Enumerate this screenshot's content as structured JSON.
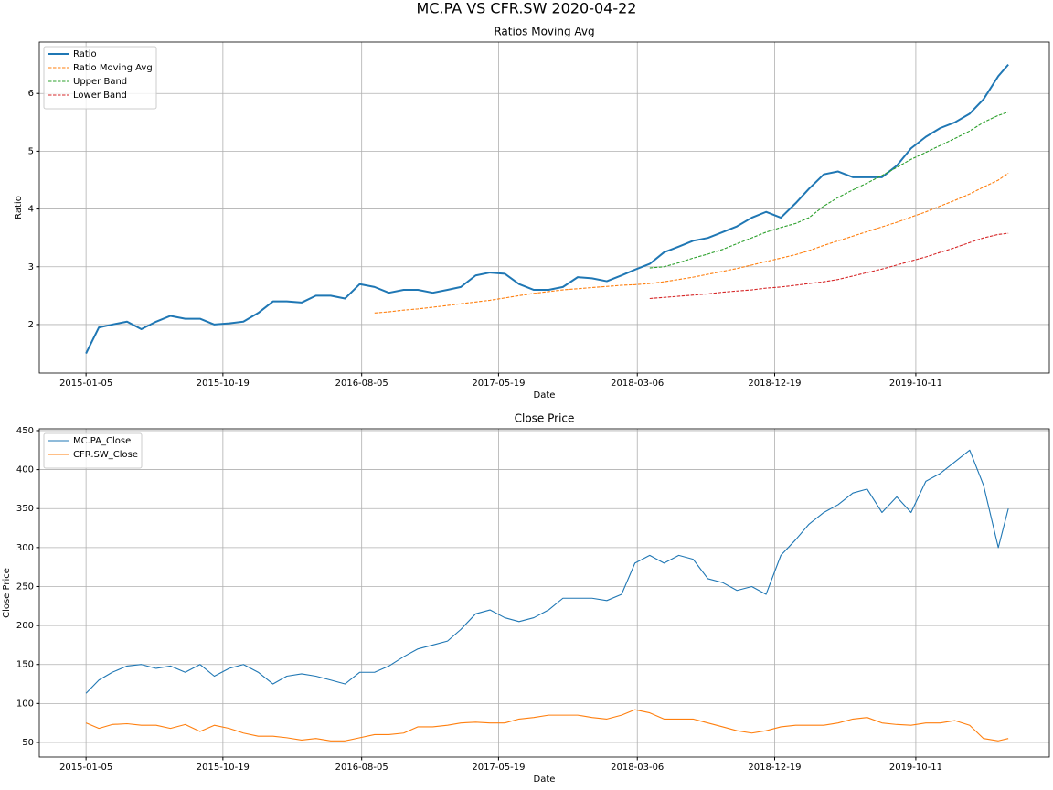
{
  "chart_data": [
    {
      "type": "line",
      "suptitle": "MC.PA VS CFR.SW 2020-04-22",
      "title": "Ratios Moving Avg",
      "xlabel": "Date",
      "ylabel": "Ratio",
      "x": [
        "2015-01-05",
        "2015-02-01",
        "2015-03-01",
        "2015-04-01",
        "2015-05-01",
        "2015-06-01",
        "2015-07-01",
        "2015-08-01",
        "2015-09-01",
        "2015-10-01",
        "2015-11-01",
        "2015-12-01",
        "2016-01-01",
        "2016-02-01",
        "2016-03-01",
        "2016-04-01",
        "2016-05-01",
        "2016-06-01",
        "2016-07-01",
        "2016-08-01",
        "2016-09-01",
        "2016-10-01",
        "2016-11-01",
        "2016-12-01",
        "2017-01-01",
        "2017-02-01",
        "2017-03-01",
        "2017-04-01",
        "2017-05-01",
        "2017-06-01",
        "2017-07-01",
        "2017-08-01",
        "2017-09-01",
        "2017-10-01",
        "2017-11-01",
        "2017-12-01",
        "2018-01-01",
        "2018-02-01",
        "2018-03-01",
        "2018-04-01",
        "2018-05-01",
        "2018-06-01",
        "2018-07-01",
        "2018-08-01",
        "2018-09-01",
        "2018-10-01",
        "2018-11-01",
        "2018-12-01",
        "2019-01-01",
        "2019-02-01",
        "2019-03-01",
        "2019-04-01",
        "2019-05-01",
        "2019-06-01",
        "2019-07-01",
        "2019-08-01",
        "2019-09-01",
        "2019-10-01",
        "2019-11-01",
        "2019-12-01",
        "2020-01-01",
        "2020-02-01",
        "2020-03-01",
        "2020-04-01",
        "2020-04-22"
      ],
      "series": [
        {
          "name": "Ratio",
          "color": "#1f77b4",
          "linestyle": "solid",
          "linewidth": 2,
          "values": [
            1.5,
            1.95,
            2.0,
            2.05,
            1.92,
            2.05,
            2.15,
            2.1,
            2.1,
            2.0,
            2.02,
            2.05,
            2.2,
            2.4,
            2.4,
            2.38,
            2.5,
            2.5,
            2.45,
            2.7,
            2.65,
            2.55,
            2.6,
            2.6,
            2.55,
            2.6,
            2.65,
            2.85,
            2.9,
            2.88,
            2.7,
            2.6,
            2.6,
            2.65,
            2.82,
            2.8,
            2.75,
            2.85,
            2.95,
            3.05,
            3.25,
            3.35,
            3.45,
            3.5,
            3.6,
            3.7,
            3.85,
            3.95,
            3.85,
            4.1,
            4.35,
            4.6,
            4.65,
            4.55,
            4.55,
            4.55,
            4.75,
            5.05,
            5.25,
            5.4,
            5.5,
            5.65,
            5.9,
            6.3,
            6.5
          ]
        },
        {
          "name": "Ratio Moving Avg",
          "color": "#ff7f0e",
          "linestyle": "dashed",
          "linewidth": 1,
          "values": [
            null,
            null,
            null,
            null,
            null,
            null,
            null,
            null,
            null,
            null,
            null,
            null,
            null,
            null,
            null,
            null,
            null,
            null,
            null,
            null,
            2.2,
            2.22,
            2.25,
            2.27,
            2.3,
            2.33,
            2.36,
            2.39,
            2.42,
            2.46,
            2.5,
            2.54,
            2.57,
            2.6,
            2.62,
            2.64,
            2.66,
            2.68,
            2.69,
            2.71,
            2.74,
            2.78,
            2.82,
            2.87,
            2.92,
            2.97,
            3.03,
            3.09,
            3.15,
            3.21,
            3.28,
            3.37,
            3.45,
            3.53,
            3.61,
            3.69,
            3.77,
            3.86,
            3.95,
            4.05,
            4.15,
            4.26,
            4.38,
            4.5,
            4.62
          ]
        },
        {
          "name": "Upper Band",
          "color": "#2ca02c",
          "linestyle": "dashed",
          "linewidth": 1,
          "values": [
            null,
            null,
            null,
            null,
            null,
            null,
            null,
            null,
            null,
            null,
            null,
            null,
            null,
            null,
            null,
            null,
            null,
            null,
            null,
            null,
            null,
            null,
            null,
            null,
            null,
            null,
            null,
            null,
            null,
            null,
            null,
            null,
            null,
            null,
            null,
            null,
            null,
            null,
            null,
            2.98,
            3.0,
            3.07,
            3.15,
            3.22,
            3.3,
            3.4,
            3.5,
            3.6,
            3.68,
            3.75,
            3.85,
            4.05,
            4.2,
            4.33,
            4.45,
            4.58,
            4.72,
            4.86,
            4.98,
            5.1,
            5.22,
            5.35,
            5.5,
            5.62,
            5.68
          ]
        },
        {
          "name": "Lower Band",
          "color": "#d62728",
          "linestyle": "dashed",
          "linewidth": 1,
          "values": [
            null,
            null,
            null,
            null,
            null,
            null,
            null,
            null,
            null,
            null,
            null,
            null,
            null,
            null,
            null,
            null,
            null,
            null,
            null,
            null,
            null,
            null,
            null,
            null,
            null,
            null,
            null,
            null,
            null,
            null,
            null,
            null,
            null,
            null,
            null,
            null,
            null,
            null,
            null,
            2.45,
            2.47,
            2.49,
            2.51,
            2.53,
            2.56,
            2.58,
            2.6,
            2.63,
            2.65,
            2.68,
            2.71,
            2.74,
            2.78,
            2.84,
            2.9,
            2.96,
            3.03,
            3.1,
            3.17,
            3.25,
            3.33,
            3.42,
            3.5,
            3.56,
            3.58
          ]
        }
      ],
      "xlim": [
        "2014-09-29",
        "2020-07-17"
      ],
      "xticks": [
        "2015-01-05",
        "2015-10-19",
        "2016-08-05",
        "2017-05-19",
        "2018-03-06",
        "2018-12-19",
        "2019-10-11"
      ],
      "ylim": [
        1.16,
        6.89
      ],
      "yticks": [
        2,
        3,
        4,
        5,
        6
      ],
      "grid": true,
      "legend": "upper left"
    },
    {
      "type": "line",
      "title": "Close Price",
      "xlabel": "Date",
      "ylabel": "Close Price",
      "x": [
        "2015-01-05",
        "2015-02-01",
        "2015-03-01",
        "2015-04-01",
        "2015-05-01",
        "2015-06-01",
        "2015-07-01",
        "2015-08-01",
        "2015-09-01",
        "2015-10-01",
        "2015-11-01",
        "2015-12-01",
        "2016-01-01",
        "2016-02-01",
        "2016-03-01",
        "2016-04-01",
        "2016-05-01",
        "2016-06-01",
        "2016-07-01",
        "2016-08-01",
        "2016-09-01",
        "2016-10-01",
        "2016-11-01",
        "2016-12-01",
        "2017-01-01",
        "2017-02-01",
        "2017-03-01",
        "2017-04-01",
        "2017-05-01",
        "2017-06-01",
        "2017-07-01",
        "2017-08-01",
        "2017-09-01",
        "2017-10-01",
        "2017-11-01",
        "2017-12-01",
        "2018-01-01",
        "2018-02-01",
        "2018-03-01",
        "2018-04-01",
        "2018-05-01",
        "2018-06-01",
        "2018-07-01",
        "2018-08-01",
        "2018-09-01",
        "2018-10-01",
        "2018-11-01",
        "2018-12-01",
        "2019-01-01",
        "2019-02-01",
        "2019-03-01",
        "2019-04-01",
        "2019-05-01",
        "2019-06-01",
        "2019-07-01",
        "2019-08-01",
        "2019-09-01",
        "2019-10-01",
        "2019-11-01",
        "2019-12-01",
        "2020-01-01",
        "2020-02-01",
        "2020-03-01",
        "2020-04-01",
        "2020-04-22"
      ],
      "series": [
        {
          "name": "MC.PA_Close",
          "color": "#1f77b4",
          "linestyle": "solid",
          "linewidth": 1,
          "values": [
            113,
            130,
            140,
            148,
            150,
            145,
            148,
            140,
            150,
            135,
            145,
            150,
            140,
            125,
            135,
            138,
            135,
            130,
            125,
            140,
            140,
            148,
            160,
            170,
            175,
            180,
            195,
            215,
            220,
            210,
            205,
            210,
            220,
            235,
            235,
            235,
            232,
            240,
            280,
            290,
            280,
            290,
            285,
            260,
            255,
            245,
            250,
            240,
            290,
            310,
            330,
            345,
            355,
            370,
            375,
            345,
            365,
            345,
            385,
            395,
            410,
            425,
            380,
            300,
            350
          ]
        },
        {
          "name": "CFR.SW_Close",
          "color": "#ff7f0e",
          "linestyle": "solid",
          "linewidth": 1,
          "values": [
            75,
            68,
            73,
            74,
            72,
            72,
            68,
            73,
            64,
            72,
            68,
            62,
            58,
            58,
            56,
            53,
            55,
            52,
            52,
            56,
            60,
            60,
            62,
            70,
            70,
            72,
            75,
            76,
            75,
            75,
            80,
            82,
            85,
            85,
            85,
            82,
            80,
            85,
            92,
            88,
            80,
            80,
            80,
            75,
            70,
            65,
            62,
            65,
            70,
            72,
            72,
            72,
            75,
            80,
            82,
            75,
            73,
            72,
            75,
            75,
            78,
            72,
            55,
            52,
            55
          ]
        }
      ],
      "xlim": [
        "2014-09-29",
        "2020-07-17"
      ],
      "xticks": [
        "2015-01-05",
        "2015-10-19",
        "2016-08-05",
        "2017-05-19",
        "2018-03-06",
        "2018-12-19",
        "2019-10-11"
      ],
      "ylim": [
        31.2,
        452.3
      ],
      "yticks": [
        50,
        100,
        150,
        200,
        250,
        300,
        350,
        400,
        450
      ],
      "grid": true,
      "legend": "upper left"
    }
  ]
}
